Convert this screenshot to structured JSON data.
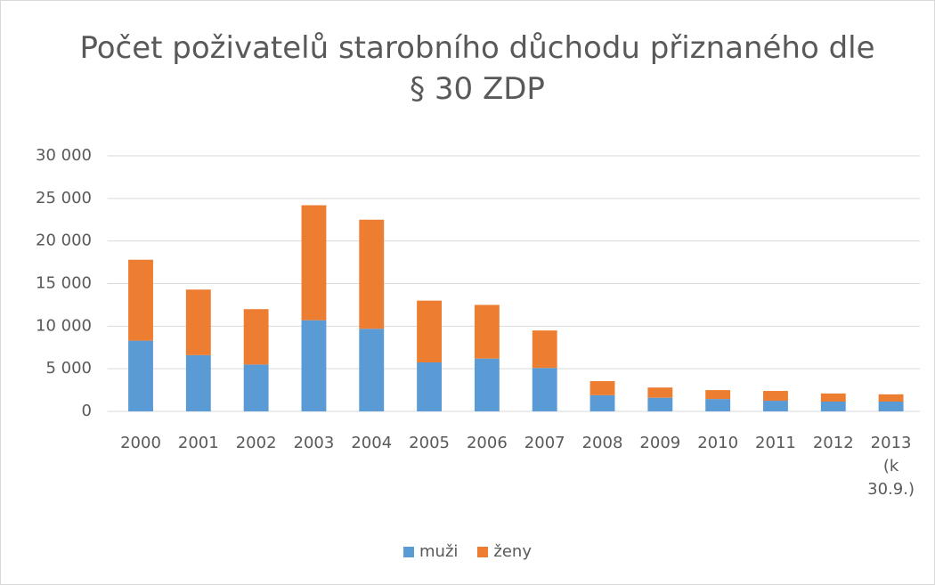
{
  "chart_data": {
    "type": "stacked_bar",
    "title": "Počet poživatelů starobního důchodu přiznaného dle § 30 ZDP",
    "categories": [
      "2000",
      "2001",
      "2002",
      "2003",
      "2004",
      "2005",
      "2006",
      "2007",
      "2008",
      "2009",
      "2010",
      "2011",
      "2012",
      "2013 (k 30.9.)"
    ],
    "series": [
      {
        "name": "muži",
        "color": "#5b9bd5",
        "values": [
          8300,
          6600,
          5500,
          10700,
          9700,
          5750,
          6200,
          5100,
          1900,
          1600,
          1450,
          1250,
          1150,
          1150
        ]
      },
      {
        "name": "ženy",
        "color": "#ed7d31",
        "values": [
          9500,
          7700,
          6500,
          13500,
          12800,
          7250,
          6300,
          4400,
          1650,
          1200,
          1050,
          1150,
          950,
          850
        ]
      }
    ],
    "ylim": [
      0,
      30000
    ],
    "yticks": [
      0,
      {
        "value": 5000,
        "label": "5 000"
      },
      {
        "value": 10000,
        "label": "10 000"
      },
      {
        "value": 15000,
        "label": "15 000"
      },
      {
        "value": 20000,
        "label": "20 000"
      },
      {
        "value": 25000,
        "label": "25 000"
      },
      {
        "value": 30000,
        "label": "30 000"
      }
    ],
    "grid": true,
    "legend": "bottom"
  }
}
